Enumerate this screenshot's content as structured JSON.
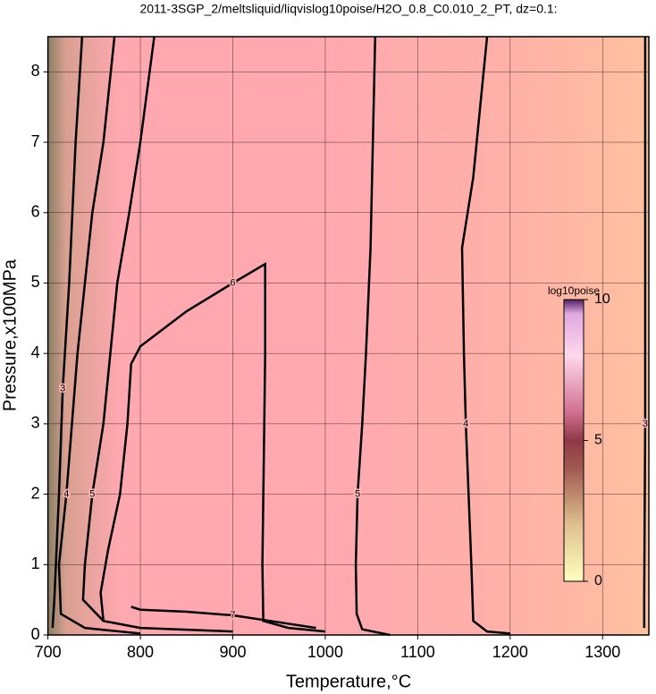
{
  "chart_data": {
    "type": "contour",
    "title": "2011-3SGP_2/meltsliquid/liqvislog10poise/H2O_0.8_C0.010_2_PT, dz=0.1:",
    "x_label": "Temperature,°C",
    "y_label": "Pressure,x100MPa",
    "xlim": [
      700,
      1350
    ],
    "ylim": [
      0,
      8.5
    ],
    "xticks": [
      700,
      800,
      900,
      1000,
      1100,
      1200,
      1300
    ],
    "yticks": [
      0,
      1,
      2,
      3,
      4,
      5,
      6,
      7,
      8
    ],
    "grid": true,
    "line_color": "#000000",
    "contours": [
      {
        "level": 3,
        "x": [
          737,
          730,
          723,
          716,
          712,
          707,
          705
        ],
        "y": [
          8.5,
          7,
          5,
          3.5,
          2,
          0.5,
          0.1
        ]
      },
      {
        "level": 4,
        "x": [
          772,
          760,
          748,
          732,
          720,
          712,
          714,
          740,
          800
        ],
        "y": [
          8.5,
          7,
          6,
          4,
          2,
          1,
          0.3,
          0.1,
          0.02
        ]
      },
      {
        "level": 5,
        "x": [
          815,
          800,
          788,
          775,
          760,
          748,
          740,
          738,
          760,
          800,
          900
        ],
        "y": [
          8.5,
          7,
          6,
          5,
          3,
          2,
          1,
          0.5,
          0.2,
          0.1,
          0.05
        ]
      },
      {
        "level": 6,
        "x": [
          760,
          757,
          765,
          778,
          786,
          790,
          800,
          850,
          900,
          935,
          935,
          934,
          932,
          933,
          960,
          1000
        ],
        "y": [
          0.2,
          0.6,
          1.2,
          2,
          3,
          3.85,
          4.1,
          4.6,
          5,
          5.27,
          4,
          3,
          1,
          0.2,
          0.1,
          0.05
        ]
      },
      {
        "level": 7,
        "x": [
          790,
          800,
          850,
          900,
          950,
          990
        ],
        "y": [
          0.4,
          0.36,
          0.33,
          0.28,
          0.18,
          0.1
        ]
      },
      {
        "level": 5,
        "x": [
          1054,
          1049,
          1044,
          1040,
          1035,
          1033,
          1034,
          1040,
          1070
        ],
        "y": [
          8.5,
          5.5,
          4,
          3,
          2,
          1,
          0.3,
          0.08,
          0
        ]
      },
      {
        "level": 4,
        "x": [
          1175,
          1160,
          1148,
          1150,
          1152,
          1158,
          1160,
          1175,
          1200
        ],
        "y": [
          8.5,
          6.5,
          5.5,
          4,
          3,
          1,
          0.2,
          0.05,
          0.02
        ]
      },
      {
        "level": 3,
        "x": [
          1346,
          1346,
          1346,
          1345,
          1345
        ],
        "y": [
          8.5,
          6,
          3,
          0.5,
          0.1
        ]
      }
    ],
    "colorbar": {
      "label": "log10poise",
      "lim": [
        0,
        10
      ],
      "ticks": [
        0,
        5,
        10
      ],
      "stops": [
        0,
        2,
        4,
        5,
        6,
        8,
        9.5,
        10
      ],
      "colors": [
        "#ffffc0",
        "#e0c090",
        "#a05a50",
        "#903848",
        "#d07090",
        "#ffd8ec",
        "#e0a8e0",
        "#502060"
      ]
    }
  }
}
